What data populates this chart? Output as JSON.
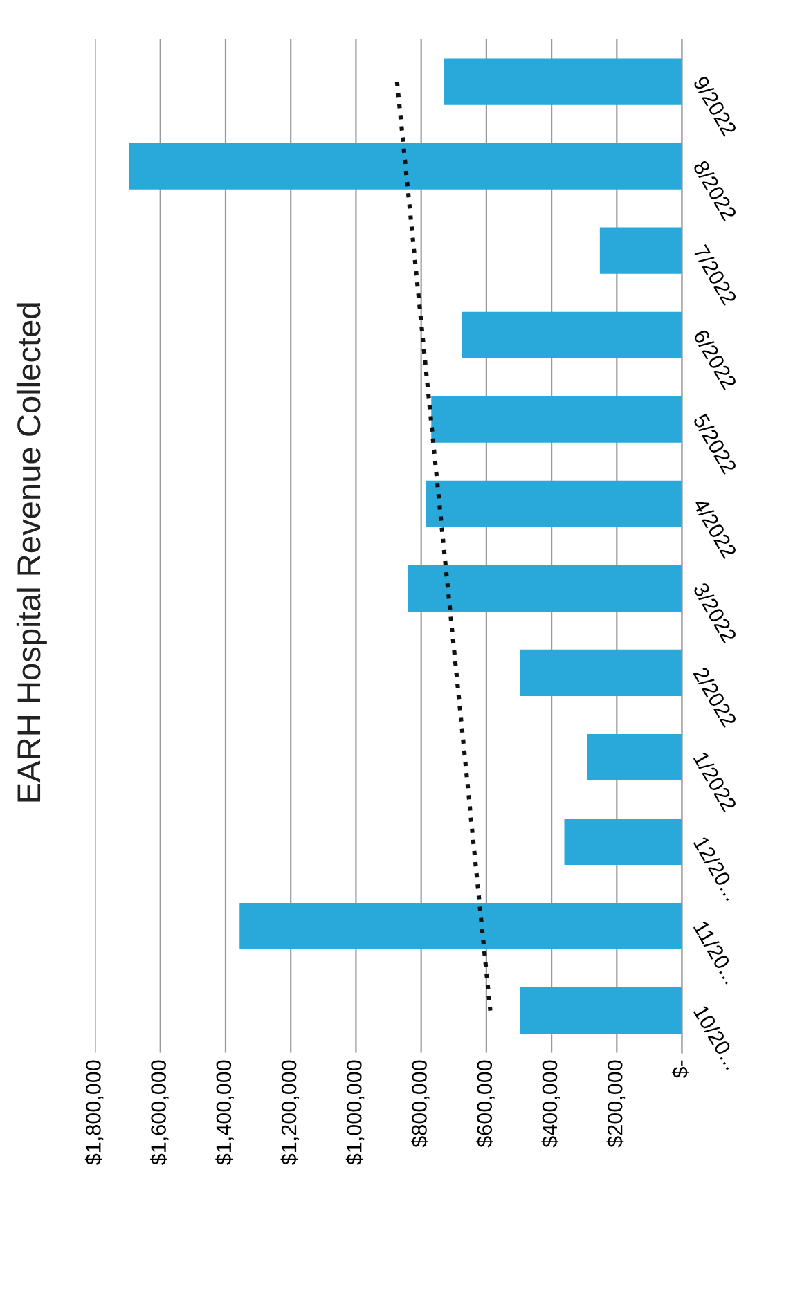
{
  "chart_data": {
    "type": "bar",
    "orientation": "horizontal",
    "title": "EARH Hospital Revenue Collected",
    "categories": [
      "9/2022",
      "8/2022",
      "7/2022",
      "6/2022",
      "5/2022",
      "4/2022",
      "3/2022",
      "2/2022",
      "1/2022",
      "12/20...",
      "11/20...",
      "10/20..."
    ],
    "series": [
      {
        "color": "#29a9d9",
        "values": [
          731000,
          1697000,
          252000,
          676000,
          769000,
          786000,
          840000,
          496000,
          290000,
          361000,
          1357000,
          496000
        ]
      },
      {
        "type": "line",
        "color": "#111111",
        "line_style": "dotted",
        "values": [
          874000,
          848000,
          822000,
          796000,
          770000,
          744000,
          718000,
          692000,
          666000,
          640000,
          614000,
          588000
        ]
      }
    ],
    "xlim": [
      1800000,
      0
    ],
    "xticks": [
      {
        "value": 1800000,
        "label": "$1,800,000"
      },
      {
        "value": 1600000,
        "label": "$1,600,000"
      },
      {
        "value": 1400000,
        "label": "$1,400,000"
      },
      {
        "value": 1200000,
        "label": "$1,200,000"
      },
      {
        "value": 1000000,
        "label": "$1,000,000"
      },
      {
        "value": 800000,
        "label": "$800,000"
      },
      {
        "value": 600000,
        "label": "$600,000"
      },
      {
        "value": 400000,
        "label": "$400,000"
      },
      {
        "value": 200000,
        "label": "$200,000"
      },
      {
        "value": 0,
        "label": "$-"
      }
    ],
    "grid": "x",
    "legend": false
  }
}
